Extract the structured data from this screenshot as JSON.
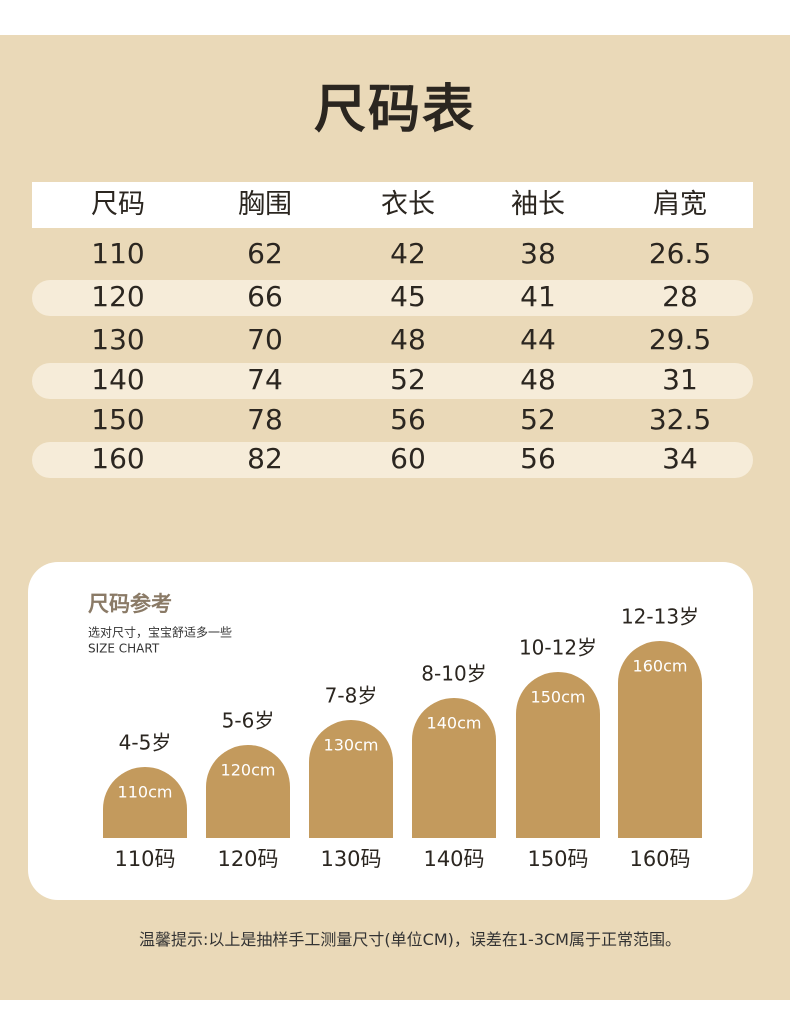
{
  "header": {
    "title": "尺码表"
  },
  "table": {
    "headers": [
      "尺码",
      "胸围",
      "衣长",
      "袖长",
      "肩宽"
    ],
    "rows": [
      [
        "110",
        "62",
        "42",
        "38",
        "26.5"
      ],
      [
        "120",
        "66",
        "45",
        "41",
        "28"
      ],
      [
        "130",
        "70",
        "48",
        "44",
        "29.5"
      ],
      [
        "140",
        "74",
        "52",
        "48",
        "31"
      ],
      [
        "150",
        "78",
        "56",
        "52",
        "32.5"
      ],
      [
        "160",
        "82",
        "60",
        "56",
        "34"
      ]
    ]
  },
  "reference": {
    "title": "尺码参考",
    "subtitle": "选对尺寸，宝宝舒适多一些",
    "subtitle_en": "SIZE CHART",
    "items": [
      {
        "age": "4-5岁",
        "height": "110cm",
        "size": "110码"
      },
      {
        "age": "5-6岁",
        "height": "120cm",
        "size": "120码"
      },
      {
        "age": "7-8岁",
        "height": "130cm",
        "size": "130码"
      },
      {
        "age": "8-10岁",
        "height": "140cm",
        "size": "140码"
      },
      {
        "age": "10-12岁",
        "height": "150cm",
        "size": "150码"
      },
      {
        "age": "12-13岁",
        "height": "160cm",
        "size": "160码"
      }
    ]
  },
  "footer": {
    "note": "温馨提示:以上是抽样手工测量尺寸(单位CM)，误差在1-3CM属于正常范围。"
  }
}
